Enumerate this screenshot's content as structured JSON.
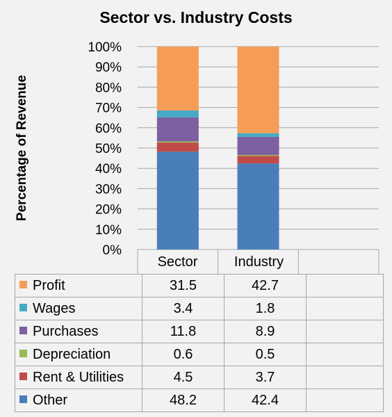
{
  "chart_data": {
    "type": "bar",
    "stacked": true,
    "title": "Sector vs. Industry Costs",
    "ylabel": "Percentage of Revenue",
    "xlabel": "",
    "ylim": [
      0,
      100
    ],
    "yticks": [
      "0%",
      "10%",
      "20%",
      "30%",
      "40%",
      "50%",
      "60%",
      "70%",
      "80%",
      "90%",
      "100%"
    ],
    "grid": true,
    "categories": [
      "Sector",
      "Industry"
    ],
    "series": [
      {
        "name": "Other",
        "color": "#4a7ebb",
        "values": [
          48.2,
          42.4
        ],
        "labels": [
          "48.2",
          "42.4"
        ]
      },
      {
        "name": "Rent & Utilities",
        "color": "#be4b48",
        "values": [
          4.5,
          3.7
        ],
        "labels": [
          "4.5",
          "3.7"
        ]
      },
      {
        "name": "Depreciation",
        "color": "#98b954",
        "values": [
          0.6,
          0.5
        ],
        "labels": [
          "0.6",
          "0.5"
        ]
      },
      {
        "name": "Purchases",
        "color": "#7d60a0",
        "values": [
          11.8,
          8.9
        ],
        "labels": [
          "11.8",
          "8.9"
        ]
      },
      {
        "name": "Wages",
        "color": "#46aac5",
        "values": [
          3.4,
          1.8
        ],
        "labels": [
          "3.4",
          "1.8"
        ]
      },
      {
        "name": "Profit",
        "color": "#f59d56",
        "values": [
          31.5,
          42.7
        ],
        "labels": [
          "31.5",
          "42.7"
        ]
      }
    ],
    "legend": "data table below chart, rows listed top to bottom from Profit to Other"
  }
}
